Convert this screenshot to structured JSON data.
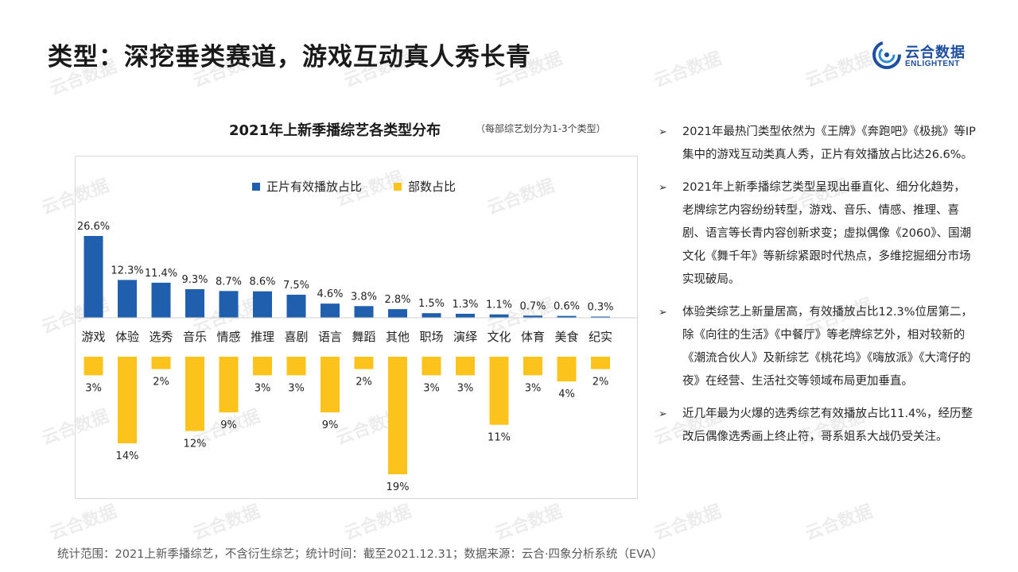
{
  "header": {
    "title": "类型：深挖垂类赛道，游戏互动真人秀长青",
    "logo_cn": "云合数据",
    "logo_en": "ENLIGHTENT"
  },
  "watermark_text": "云合数据",
  "colors": {
    "bar_primary": "#1f5fad",
    "bar_secondary": "#fbc31c",
    "brand": "#1e4f9e"
  },
  "chart": {
    "title": "2021年上新季播综艺各类型分布",
    "note": "（每部综艺划分为1-3个类型）"
  },
  "chart_data": {
    "type": "bar",
    "categories": [
      "游戏",
      "体验",
      "选秀",
      "音乐",
      "情感",
      "推理",
      "喜剧",
      "语言",
      "舞蹈",
      "其他",
      "职场",
      "演绎",
      "文化",
      "体育",
      "美食",
      "纪实"
    ],
    "series": [
      {
        "name": "正片有效播放占比",
        "values": [
          26.6,
          12.3,
          11.4,
          9.3,
          8.7,
          8.6,
          7.5,
          4.6,
          3.8,
          2.8,
          1.5,
          1.3,
          1.1,
          0.7,
          0.6,
          0.3
        ],
        "labels": [
          "26.6%",
          "12.3%",
          "11.4%",
          "9.3%",
          "8.7%",
          "8.6%",
          "7.5%",
          "4.6%",
          "3.8%",
          "2.8%",
          "1.5%",
          "1.3%",
          "1.1%",
          "0.7%",
          "0.6%",
          "0.3%"
        ],
        "color": "#1f5fad"
      },
      {
        "name": "部数占比",
        "values": [
          3,
          14,
          2,
          12,
          9,
          3,
          3,
          9,
          2,
          19,
          3,
          3,
          11,
          3,
          4,
          2
        ],
        "labels": [
          "3%",
          "14%",
          "2%",
          "12%",
          "9%",
          "3%",
          "3%",
          "9%",
          "2%",
          "19%",
          "3%",
          "3%",
          "11%",
          "3%",
          "4%",
          "2%"
        ],
        "color": "#fbc31c"
      }
    ],
    "legend": "top-center",
    "grid": false
  },
  "bullets": [
    "2021年最热门类型依然为《王牌》《奔跑吧》《极挑》等IP集中的游戏互动类真人秀，正片有效播放占比达26.6%。",
    "2021年上新季播综艺类型呈现出垂直化、细分化趋势，老牌综艺内容纷纷转型，游戏、音乐、情感、推理、喜剧、语言等长青内容创新求变；虚拟偶像《2060》、国潮文化《舞千年》等新综紧跟时代热点，多维挖掘细分市场实现破局。",
    "体验类综艺上新量居高，有效播放占比12.3%位居第二，除《向往的生活》《中餐厅》等老牌综艺外，相对较新的《潮流合伙人》及新综艺《桃花坞》《嗨放派》《大湾仔的夜》在经营、生活社交等领域布局更加垂直。",
    "近几年最为火爆的选秀综艺有效播放占比11.4%，经历整改后偶像选秀画上终止符，哥系姐系大战仍受关注。"
  ],
  "bullet_marker": "➢",
  "footer": "统计范围：2021上新季播综艺，不含衍生综艺；统计时间：截至2021.12.31；数据来源：云合·四象分析系统（EVA）"
}
